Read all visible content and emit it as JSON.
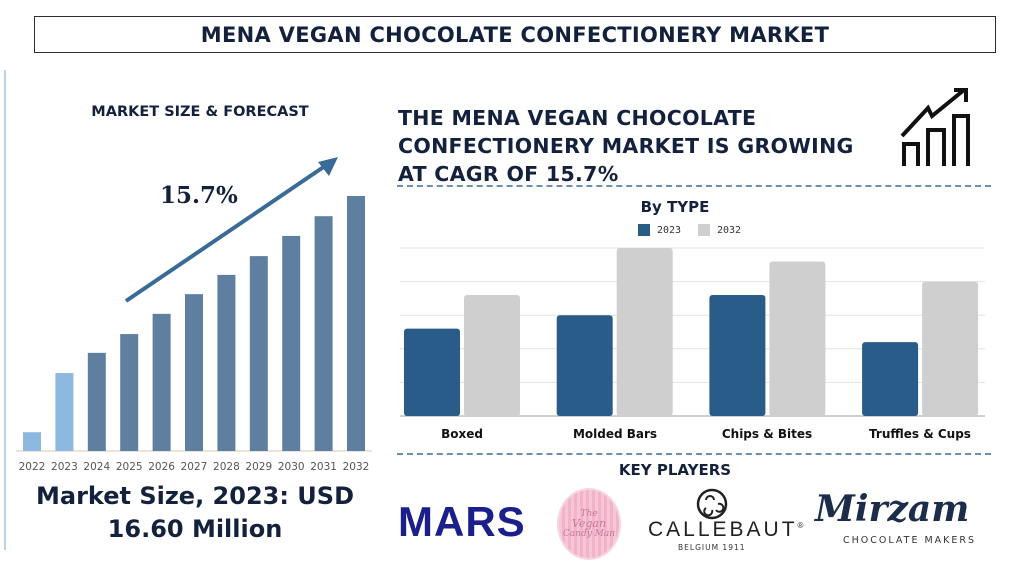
{
  "title": "MENA VEGAN CHOCOLATE CONFECTIONERY MARKET",
  "left": {
    "heading": "MARKET SIZE & FORECAST",
    "cagr_label": "15.7%",
    "market_size_line1": "Market Size, 2023: USD",
    "market_size_line2": "16.60 Million"
  },
  "headline": {
    "line1": "THE MENA VEGAN CHOCOLATE",
    "line2": "CONFECTIONERY MARKET IS GROWING",
    "line3": "AT CAGR OF 15.7%",
    "icon": "growth-chart-arrow-icon"
  },
  "key_players": {
    "heading": "KEY PLAYERS",
    "logos": [
      {
        "name": "MARS"
      },
      {
        "name": "The Vegan Candy Man",
        "lines": [
          "The",
          "Vegan",
          "Candy Man"
        ]
      },
      {
        "name": "CALLEBAUT",
        "sub": "BELGIUM 1911",
        "mark": "®"
      },
      {
        "name": "Mirzam",
        "sub": "CHOCOLATE MAKERS"
      }
    ]
  },
  "colors": {
    "navy": "#14213d",
    "forecast_bar": "#5f7fa0",
    "historic_bar": "#8db8e0",
    "bar_2023": "#2a5c8a",
    "bar_2032": "#cfcfcf"
  },
  "chart_data": [
    {
      "type": "bar",
      "title": "MARKET SIZE & FORECAST",
      "categories": [
        "2022",
        "2023",
        "2024",
        "2025",
        "2026",
        "2027",
        "2028",
        "2029",
        "2030",
        "2031",
        "2032"
      ],
      "values": [
        4.0,
        16.6,
        20.9,
        24.9,
        29.2,
        33.4,
        37.5,
        41.5,
        45.8,
        50.0,
        54.3
      ],
      "highlighted_years": [
        "2022",
        "2023"
      ],
      "annotation": "15.7%",
      "grid": false,
      "ylim": [
        0,
        56
      ]
    },
    {
      "type": "bar",
      "title": "By TYPE",
      "categories": [
        "Boxed",
        "Molded Bars",
        "Chips & Bites",
        "Truffles & Cups"
      ],
      "series": [
        {
          "name": "2023",
          "values": [
            2.6,
            3.0,
            3.6,
            2.2
          ]
        },
        {
          "name": "2032",
          "values": [
            3.6,
            5.0,
            4.6,
            4.0
          ]
        }
      ],
      "ylim": [
        0,
        5
      ],
      "grid": true,
      "legend": "top"
    }
  ]
}
